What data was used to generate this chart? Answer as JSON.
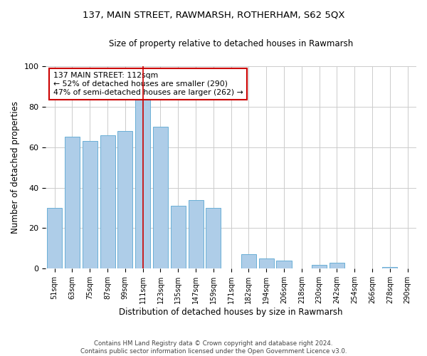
{
  "title": "137, MAIN STREET, RAWMARSH, ROTHERHAM, S62 5QX",
  "subtitle": "Size of property relative to detached houses in Rawmarsh",
  "xlabel": "Distribution of detached houses by size in Rawmarsh",
  "ylabel": "Number of detached properties",
  "footer_line1": "Contains HM Land Registry data © Crown copyright and database right 2024.",
  "footer_line2": "Contains public sector information licensed under the Open Government Licence v3.0.",
  "bar_labels": [
    "51sqm",
    "63sqm",
    "75sqm",
    "87sqm",
    "99sqm",
    "111sqm",
    "123sqm",
    "135sqm",
    "147sqm",
    "159sqm",
    "171sqm",
    "182sqm",
    "194sqm",
    "206sqm",
    "218sqm",
    "230sqm",
    "242sqm",
    "254sqm",
    "266sqm",
    "278sqm",
    "290sqm"
  ],
  "bar_values": [
    30,
    65,
    63,
    66,
    68,
    84,
    70,
    31,
    34,
    30,
    0,
    7,
    5,
    4,
    0,
    2,
    3,
    0,
    0,
    1,
    0
  ],
  "bar_color": "#aecde8",
  "bar_edge_color": "#6aafd6",
  "annotation_title": "137 MAIN STREET: 112sqm",
  "annotation_line1": "← 52% of detached houses are smaller (290)",
  "annotation_line2": "47% of semi-detached houses are larger (262) →",
  "vline_color": "#cc0000",
  "annotation_box_color": "#ffffff",
  "annotation_box_edge": "#cc0000",
  "ylim": [
    0,
    100
  ],
  "background_color": "#ffffff",
  "grid_color": "#cccccc"
}
